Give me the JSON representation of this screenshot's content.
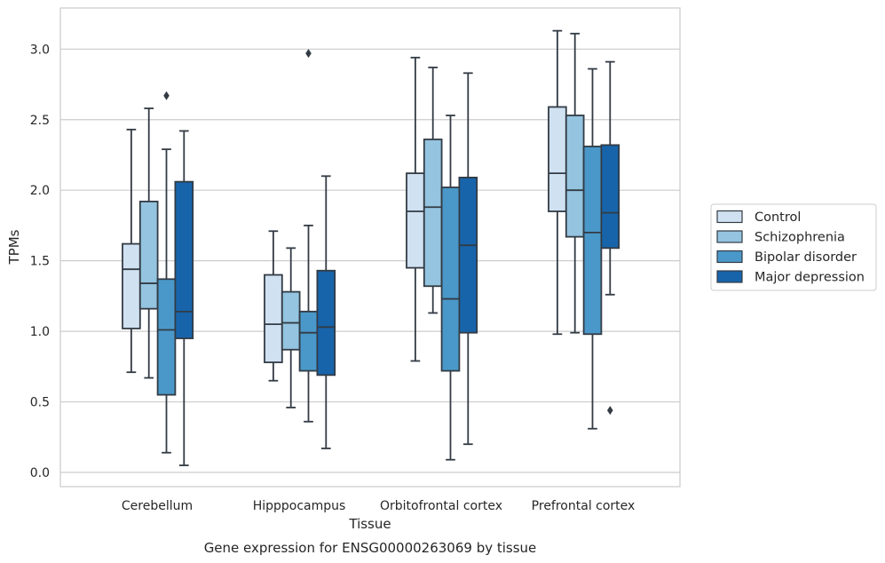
{
  "chart_data": {
    "type": "box",
    "title": "",
    "caption": "Gene expression for ENSG00000263069 by tissue",
    "xlabel": "Tissue",
    "ylabel": "TPMs",
    "ylim": [
      -0.1,
      3.3
    ],
    "yticks": [
      0.0,
      0.5,
      1.0,
      1.5,
      2.0,
      2.5,
      3.0
    ],
    "ytick_labels": [
      "0.0",
      "0.5",
      "1.0",
      "1.5",
      "2.0",
      "2.5",
      "3.0"
    ],
    "grid": "horizontal",
    "legend_position": "outside-right",
    "categories": [
      "Cerebellum",
      "Hipppocampus",
      "Orbitofrontal cortex",
      "Prefrontal cortex"
    ],
    "series": [
      {
        "name": "Control",
        "color": "#d0e1f2",
        "boxes": [
          {
            "whisker_low": 0.71,
            "q1": 1.02,
            "median": 1.44,
            "q3": 1.62,
            "whisker_high": 2.43,
            "outliers": []
          },
          {
            "whisker_low": 0.65,
            "q1": 0.78,
            "median": 1.05,
            "q3": 1.4,
            "whisker_high": 1.71,
            "outliers": []
          },
          {
            "whisker_low": 0.79,
            "q1": 1.45,
            "median": 1.85,
            "q3": 2.12,
            "whisker_high": 2.94,
            "outliers": []
          },
          {
            "whisker_low": 0.98,
            "q1": 1.85,
            "median": 2.12,
            "q3": 2.59,
            "whisker_high": 3.13,
            "outliers": []
          }
        ]
      },
      {
        "name": "Schizophrenia",
        "color": "#94c4df",
        "boxes": [
          {
            "whisker_low": 0.67,
            "q1": 1.16,
            "median": 1.34,
            "q3": 1.92,
            "whisker_high": 2.58,
            "outliers": []
          },
          {
            "whisker_low": 0.46,
            "q1": 0.87,
            "median": 1.06,
            "q3": 1.28,
            "whisker_high": 1.59,
            "outliers": []
          },
          {
            "whisker_low": 1.13,
            "q1": 1.32,
            "median": 1.88,
            "q3": 2.36,
            "whisker_high": 2.87,
            "outliers": []
          },
          {
            "whisker_low": 0.99,
            "q1": 1.67,
            "median": 2.0,
            "q3": 2.53,
            "whisker_high": 3.11,
            "outliers": []
          }
        ]
      },
      {
        "name": "Bipolar disorder",
        "color": "#4a98c9",
        "boxes": [
          {
            "whisker_low": 0.14,
            "q1": 0.55,
            "median": 1.01,
            "q3": 1.37,
            "whisker_high": 2.29,
            "outliers": [
              2.67
            ]
          },
          {
            "whisker_low": 0.36,
            "q1": 0.72,
            "median": 0.99,
            "q3": 1.14,
            "whisker_high": 1.75,
            "outliers": [
              2.97
            ]
          },
          {
            "whisker_low": 0.09,
            "q1": 0.72,
            "median": 1.23,
            "q3": 2.02,
            "whisker_high": 2.53,
            "outliers": []
          },
          {
            "whisker_low": 0.31,
            "q1": 0.98,
            "median": 1.7,
            "q3": 2.31,
            "whisker_high": 2.86,
            "outliers": []
          }
        ]
      },
      {
        "name": "Major depression",
        "color": "#1764ab",
        "boxes": [
          {
            "whisker_low": 0.05,
            "q1": 0.95,
            "median": 1.14,
            "q3": 2.06,
            "whisker_high": 2.42,
            "outliers": []
          },
          {
            "whisker_low": 0.17,
            "q1": 0.69,
            "median": 1.03,
            "q3": 1.43,
            "whisker_high": 2.1,
            "outliers": []
          },
          {
            "whisker_low": 0.2,
            "q1": 0.99,
            "median": 1.61,
            "q3": 2.09,
            "whisker_high": 2.83,
            "outliers": []
          },
          {
            "whisker_low": 1.26,
            "q1": 1.59,
            "median": 1.84,
            "q3": 2.32,
            "whisker_high": 2.91,
            "outliers": [
              0.44
            ]
          }
        ]
      }
    ]
  }
}
